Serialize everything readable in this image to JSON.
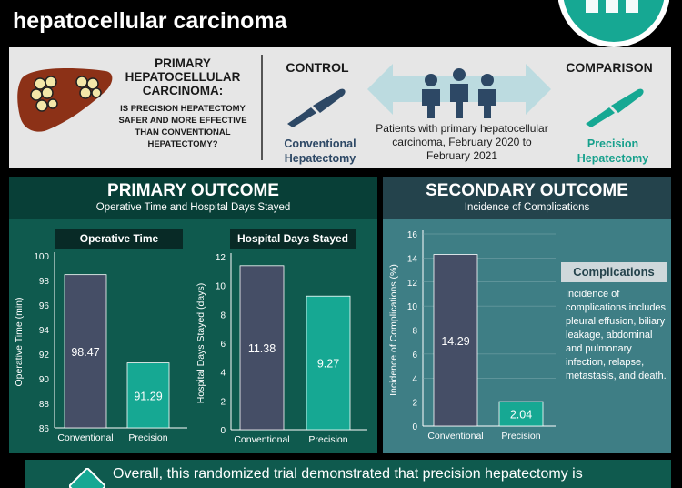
{
  "header": {
    "title": "hepatocellular carcinoma"
  },
  "study": {
    "hcc_title": "PRIMARY HEPATOCELLULAR CARCINOMA:",
    "question": "IS PRECISION HEPATECTOMY SAFER AND MORE EFFECTIVE THAN CONVENTIONAL HEPATECTOMY?",
    "control_label": "CONTROL",
    "comparison_label": "COMPARISON",
    "control_technique": "Conventional Hepatectomy",
    "comparison_technique": "Precision Hepatectomy",
    "patients": "Patients with primary hepatocellular carcinoma, February 2020 to February 2021"
  },
  "primary": {
    "title": "PRIMARY OUTCOME",
    "subtitle": "Operative Time and Hospital Days Stayed"
  },
  "secondary": {
    "title": "SECONDARY OUTCOME",
    "subtitle": "Incidence of Complications"
  },
  "complications": {
    "title": "Complications",
    "text": "Incidence of complications includes pleural effusion, biliary leakage, abdominal and pulmonary infection, relapse, metastasis, and death."
  },
  "footer": {
    "text": "Overall, this randomized trial demonstrated that precision hepatectomy is"
  },
  "colors": {
    "conventional": "#454e66",
    "precision": "#16a893",
    "primary_panel": "#0f5a4e",
    "secondary_panel": "#3e7e85"
  },
  "chart_data": [
    {
      "type": "bar",
      "title": "Operative Time",
      "categories": [
        "Conventional",
        "Precision"
      ],
      "values": [
        98.47,
        91.29
      ],
      "value_labels": [
        "98.47",
        "91.29"
      ],
      "ylabel": "Operative Time (min)",
      "ylim": [
        86,
        100
      ],
      "yticks": [
        86,
        88,
        90,
        92,
        94,
        96,
        98,
        100
      ]
    },
    {
      "type": "bar",
      "title": "Hospital Days Stayed",
      "categories": [
        "Conventional",
        "Precision"
      ],
      "values": [
        11.38,
        9.27
      ],
      "value_labels": [
        "11.38",
        "9.27"
      ],
      "ylabel": "Hospital Days Stayed (days)",
      "ylim": [
        0,
        12
      ],
      "yticks": [
        0,
        2,
        4,
        6,
        8,
        10,
        12
      ]
    },
    {
      "type": "bar",
      "title": "",
      "categories": [
        "Conventional",
        "Precision"
      ],
      "values": [
        14.29,
        2.04
      ],
      "value_labels": [
        "14.29",
        "2.04"
      ],
      "ylabel": "Incidence of Complications (%)",
      "ylim": [
        0,
        16
      ],
      "yticks": [
        0,
        2,
        4,
        6,
        8,
        10,
        12,
        14,
        16
      ]
    }
  ]
}
